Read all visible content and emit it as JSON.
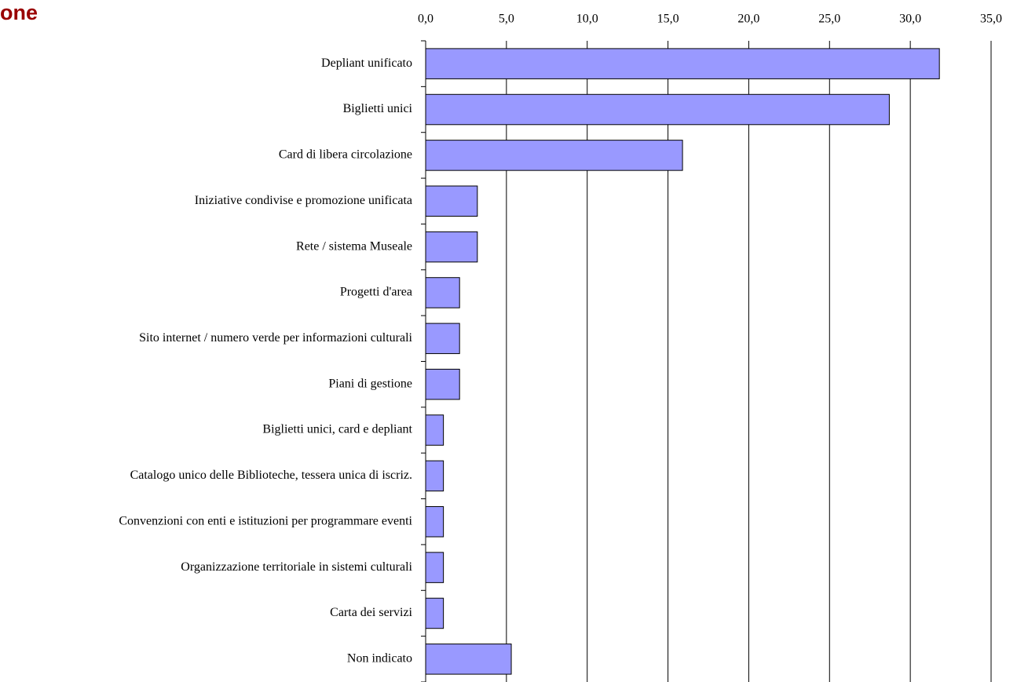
{
  "chart_data": {
    "type": "bar",
    "orientation": "horizontal",
    "title": "one",
    "categories": [
      "Depliant unificato",
      "Biglietti unici",
      "Card di libera circolazione",
      "Iniziative condivise e promozione unificata",
      "Rete / sistema Museale",
      "Progetti d'area",
      "Sito internet / numero verde per informazioni culturali",
      "Piani di gestione",
      "Biglietti unici, card e depliant",
      "Catalogo unico delle Biblioteche, tessera unica di iscriz.",
      "Convenzioni con enti e istituzioni per programmare eventi",
      "Organizzazione territoriale in sistemi culturali",
      "Carta dei servizi",
      "Non indicato"
    ],
    "values": [
      31.8,
      28.7,
      15.9,
      3.2,
      3.2,
      2.1,
      2.1,
      2.1,
      1.1,
      1.1,
      1.1,
      1.1,
      1.1,
      5.3
    ],
    "color": "#9999ff",
    "xlim": [
      0,
      35
    ],
    "xticks": [
      {
        "value": 0,
        "label": "0,0"
      },
      {
        "value": 5,
        "label": "5,0"
      },
      {
        "value": 10,
        "label": "10,0"
      },
      {
        "value": 15,
        "label": "15,0"
      },
      {
        "value": 20,
        "label": "20,0"
      },
      {
        "value": 25,
        "label": "25,0"
      },
      {
        "value": 30,
        "label": "30,0"
      },
      {
        "value": 35,
        "label": "35,0"
      }
    ],
    "grid": true
  }
}
